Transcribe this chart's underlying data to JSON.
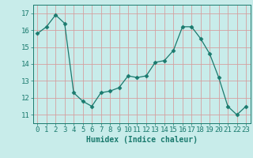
{
  "x": [
    0,
    1,
    2,
    3,
    4,
    5,
    6,
    7,
    8,
    9,
    10,
    11,
    12,
    13,
    14,
    15,
    16,
    17,
    18,
    19,
    20,
    21,
    22,
    23
  ],
  "y": [
    15.8,
    16.2,
    16.9,
    16.4,
    12.3,
    11.8,
    11.5,
    12.3,
    12.4,
    12.6,
    13.3,
    13.2,
    13.3,
    14.1,
    14.2,
    14.8,
    16.2,
    16.2,
    15.5,
    14.6,
    13.2,
    11.5,
    11.0,
    11.5
  ],
  "line_color": "#1a7a6e",
  "marker": "D",
  "marker_size": 2.5,
  "bg_color": "#c8ecea",
  "grid_color": "#b0d8d4",
  "xlabel": "Humidex (Indice chaleur)",
  "ylabel_ticks": [
    11,
    12,
    13,
    14,
    15,
    16,
    17
  ],
  "xlim": [
    -0.5,
    23.5
  ],
  "ylim": [
    10.5,
    17.5
  ],
  "xticks": [
    0,
    1,
    2,
    3,
    4,
    5,
    6,
    7,
    8,
    9,
    10,
    11,
    12,
    13,
    14,
    15,
    16,
    17,
    18,
    19,
    20,
    21,
    22,
    23
  ],
  "tick_color": "#1a7a6e",
  "label_fontsize": 7,
  "tick_fontsize": 6.5
}
